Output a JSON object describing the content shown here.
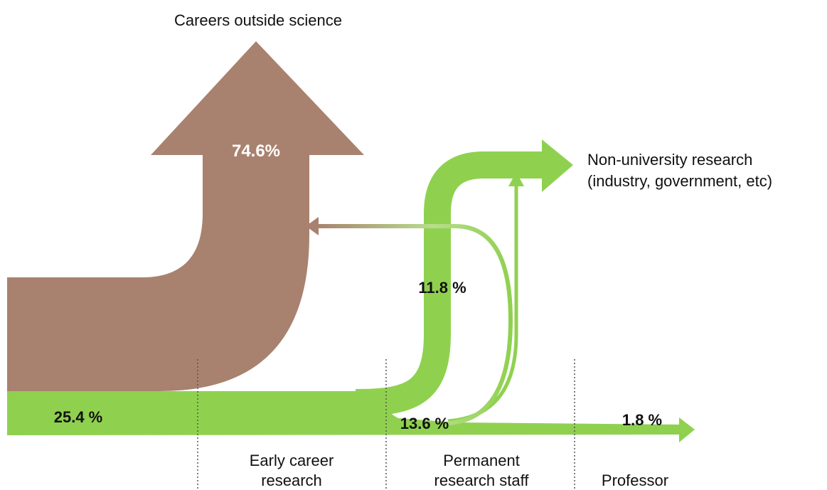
{
  "destinations": {
    "outside": "Careers outside science",
    "non_university": [
      "Non-university research",
      "(industry, government, etc)"
    ]
  },
  "flows": {
    "outside": "74.6%",
    "start": "25.4 %",
    "non_university": "11.8 %",
    "permanent": "13.6 %",
    "professor": "1.8 %"
  },
  "stages": [
    [
      "Early career",
      "research"
    ],
    [
      "Permanent",
      "research staff"
    ],
    [
      "Professor"
    ]
  ]
}
